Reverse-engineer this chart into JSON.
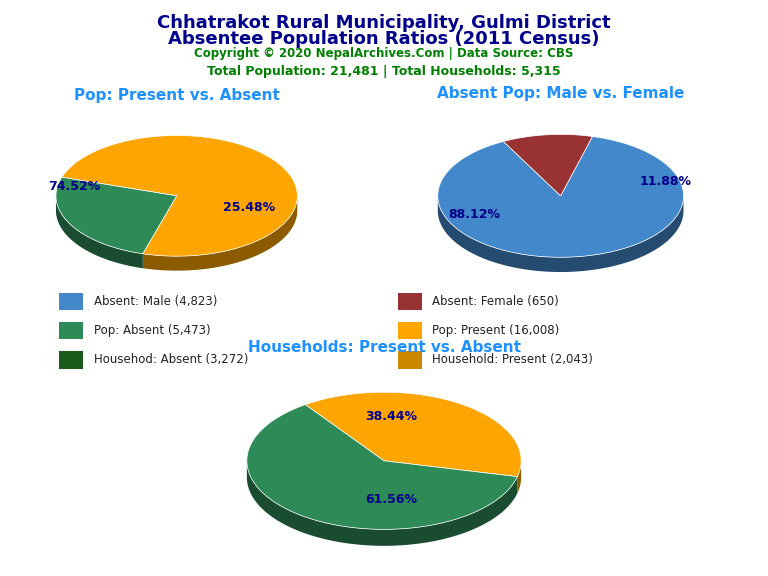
{
  "title_line1": "Chhatrakot Rural Municipality, Gulmi District",
  "title_line2": "Absentee Population Ratios (2011 Census)",
  "title_color": "#00008B",
  "copyright_text": "Copyright © 2020 NepalArchives.Com | Data Source: CBS",
  "copyright_color": "#008000",
  "stats_text": "Total Population: 21,481 | Total Households: 5,315",
  "stats_color": "#008000",
  "pie1_title": "Pop: Present vs. Absent",
  "pie1_values": [
    16008,
    5473
  ],
  "pie1_colors": [
    "#FFA500",
    "#2E8B57"
  ],
  "pie1_pcts": [
    "74.52%",
    "25.48%"
  ],
  "pie2_title": "Absent Pop: Male vs. Female",
  "pie2_values": [
    4823,
    650
  ],
  "pie2_colors": [
    "#4488CC",
    "#993333"
  ],
  "pie2_pcts": [
    "88.12%",
    "11.88%"
  ],
  "pie3_title": "Households: Present vs. Absent",
  "pie3_values": [
    2043,
    3272
  ],
  "pie3_colors": [
    "#FFA500",
    "#2E8B57"
  ],
  "pie3_pcts": [
    "38.44%",
    "61.56%"
  ],
  "legend_items": [
    {
      "label": "Absent: Male (4,823)",
      "color": "#4488CC"
    },
    {
      "label": "Absent: Female (650)",
      "color": "#993333"
    },
    {
      "label": "Pop: Absent (5,473)",
      "color": "#2E8B57"
    },
    {
      "label": "Pop: Present (16,008)",
      "color": "#FFA500"
    },
    {
      "label": "Househod: Absent (3,272)",
      "color": "#1A5C1A"
    },
    {
      "label": "Household: Present (2,043)",
      "color": "#CC8800"
    }
  ],
  "subtitle_color": "#1E90FF",
  "pct_label_color": "#00008B",
  "pct_label_fontsize": 9,
  "pie_title_fontsize": 11,
  "title_fontsize": 13,
  "copyright_fontsize": 8.5,
  "stats_fontsize": 9
}
